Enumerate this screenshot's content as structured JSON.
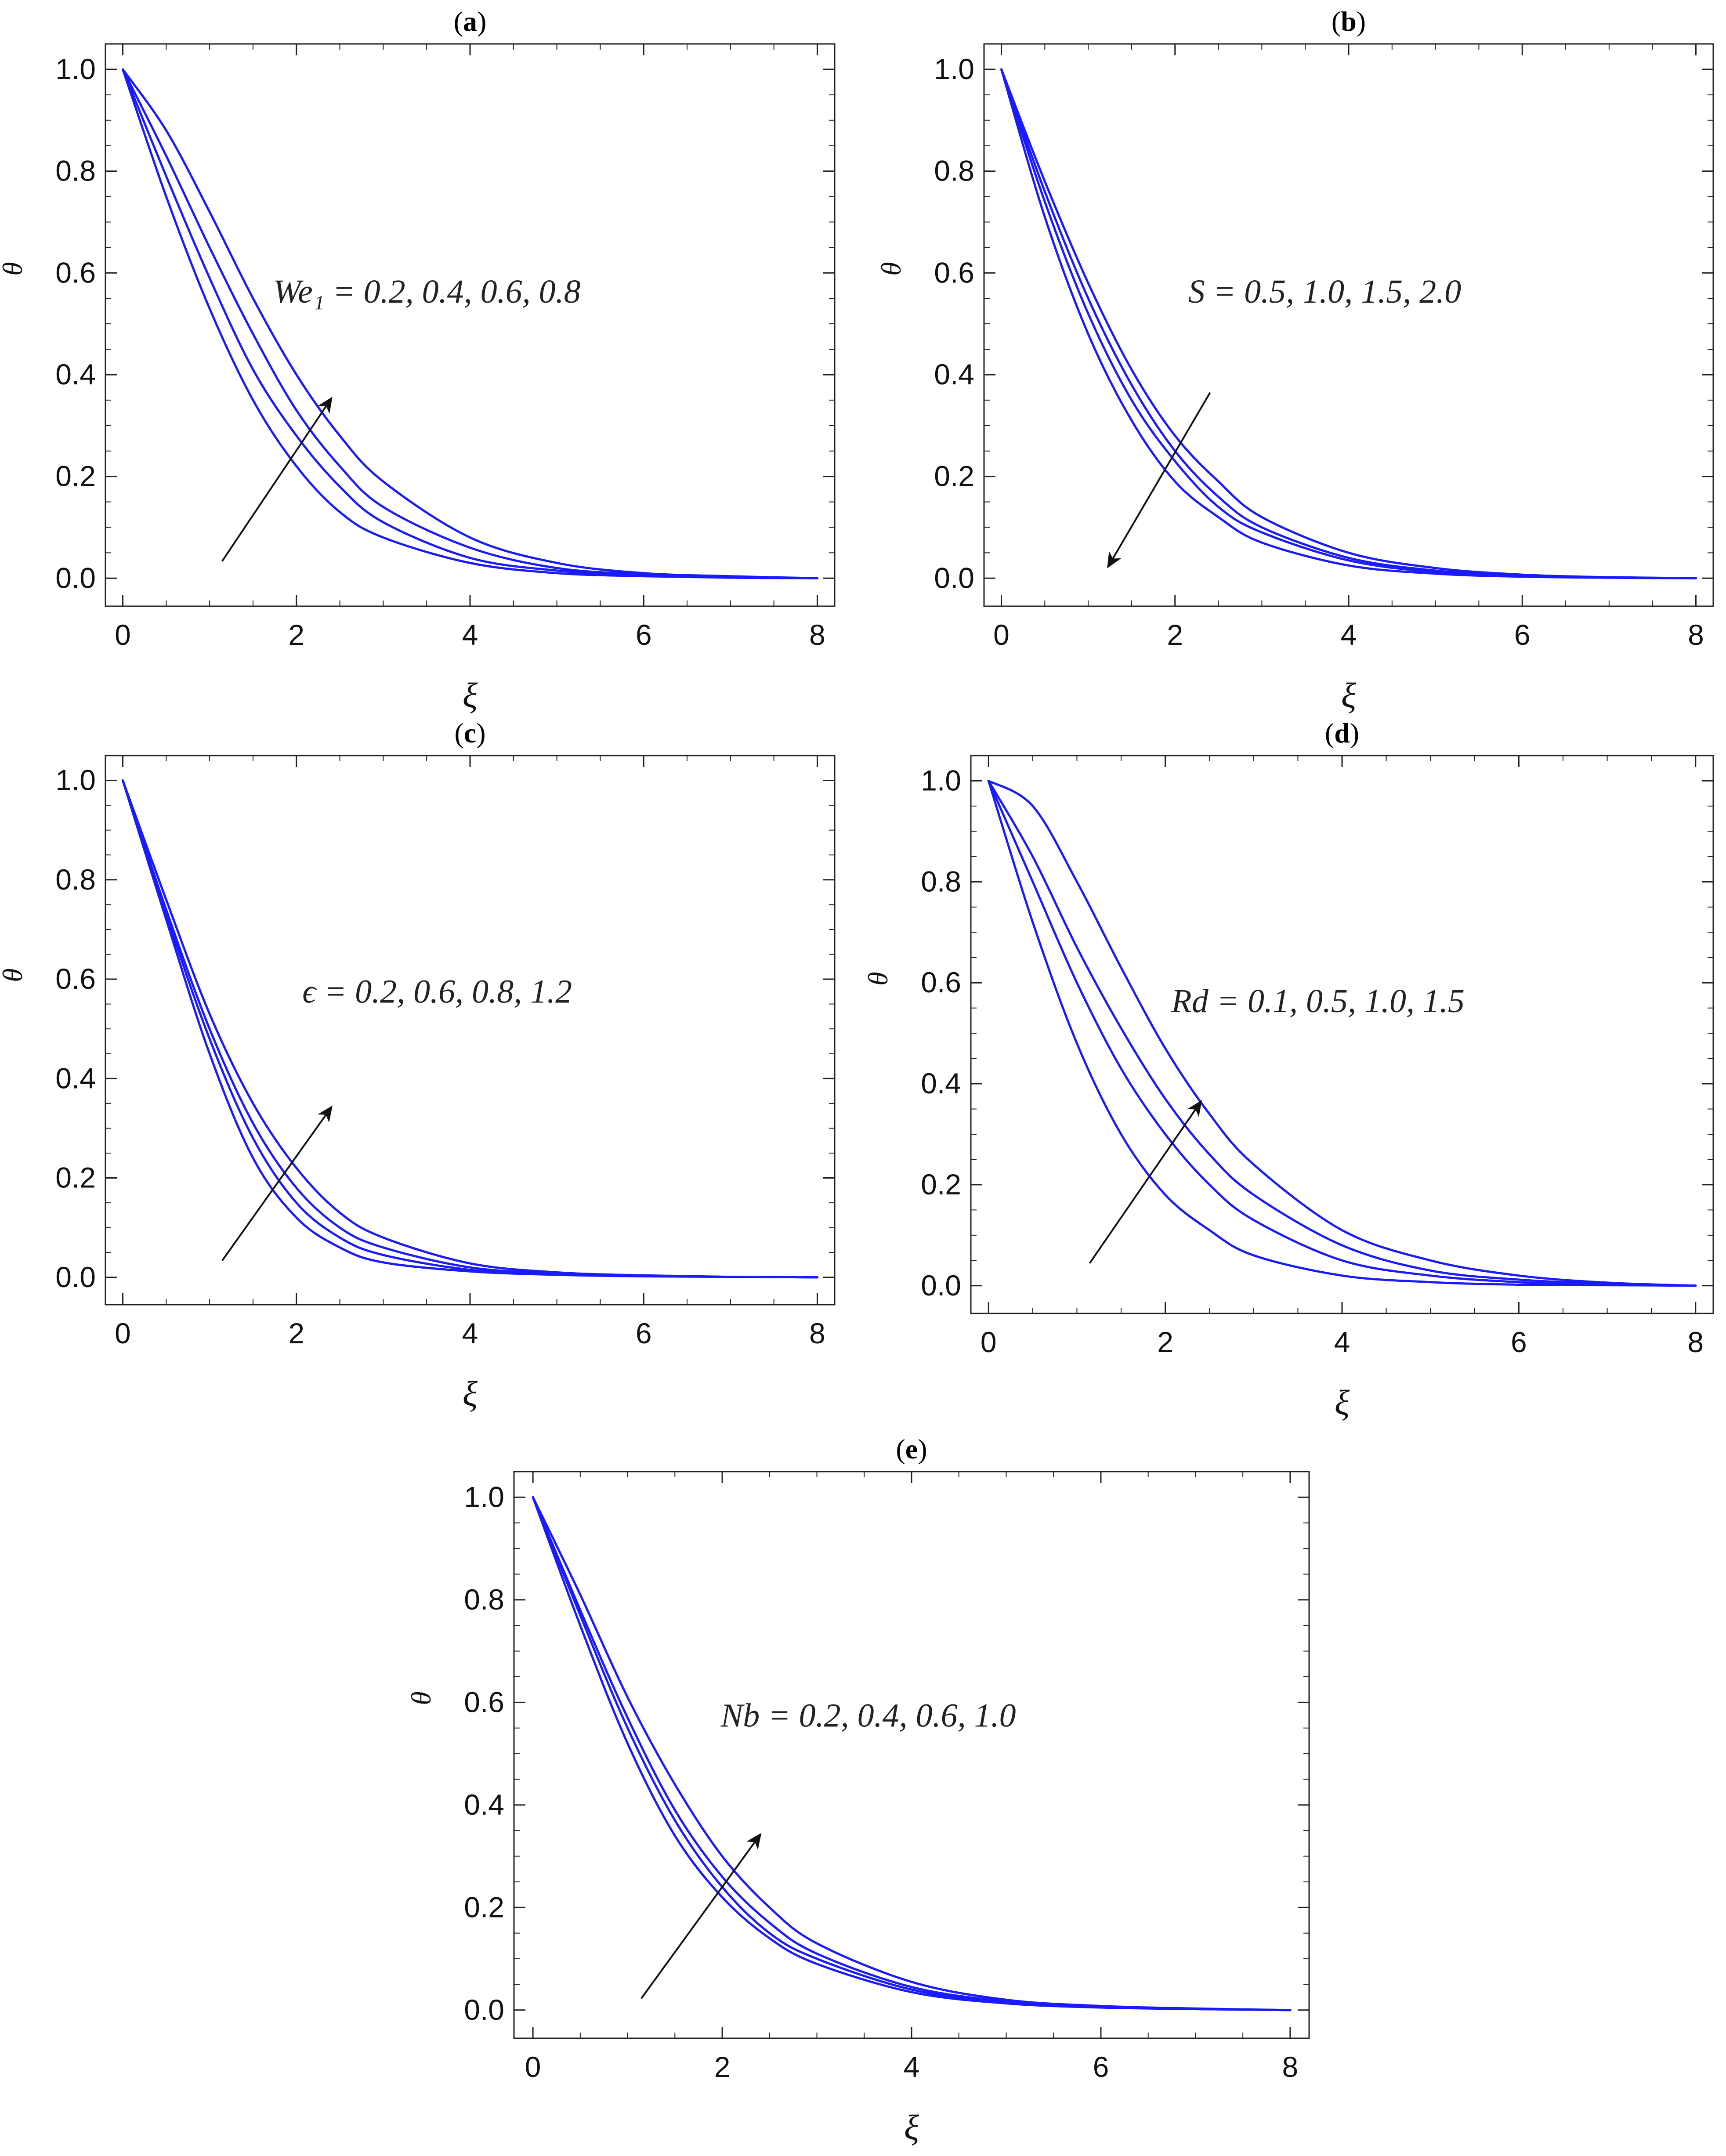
{
  "chart_data": [
    {
      "panel": "a",
      "type": "line",
      "xlabel": "ξ",
      "ylabel": "θ",
      "xlim": [
        0,
        8
      ],
      "ylim": [
        0,
        1
      ],
      "xticks": [
        0,
        2,
        4,
        6,
        8
      ],
      "yticks": [
        0.0,
        0.2,
        0.4,
        0.6,
        0.8,
        1.0
      ],
      "x": [
        0,
        0.5,
        1,
        1.5,
        2,
        2.5,
        3,
        4,
        5,
        6,
        7,
        8
      ],
      "series": [
        {
          "values": [
            1.0,
            0.75,
            0.53,
            0.35,
            0.22,
            0.13,
            0.08,
            0.03,
            0.01,
            0.004,
            0.001,
            0.0
          ]
        },
        {
          "values": [
            1.0,
            0.79,
            0.59,
            0.41,
            0.28,
            0.18,
            0.11,
            0.04,
            0.015,
            0.005,
            0.002,
            0.0
          ]
        },
        {
          "values": [
            1.0,
            0.83,
            0.65,
            0.48,
            0.33,
            0.22,
            0.14,
            0.06,
            0.02,
            0.008,
            0.003,
            0.0
          ]
        },
        {
          "values": [
            1.0,
            0.88,
            0.72,
            0.55,
            0.4,
            0.28,
            0.19,
            0.08,
            0.03,
            0.01,
            0.004,
            0.0
          ]
        }
      ],
      "annotation": {
        "text": "We₁ = 0.2, 0.4, 0.6, 0.8",
        "arrow": "up"
      }
    },
    {
      "panel": "b",
      "type": "line",
      "xlabel": "ξ",
      "ylabel": "θ",
      "xlim": [
        0,
        8
      ],
      "ylim": [
        0,
        1
      ],
      "xticks": [
        0,
        2,
        4,
        6,
        8
      ],
      "yticks": [
        0.0,
        0.2,
        0.4,
        0.6,
        0.8,
        1.0
      ],
      "x": [
        0,
        0.5,
        1,
        1.5,
        2,
        2.5,
        3,
        4,
        5,
        6,
        7,
        8
      ],
      "series": [
        {
          "values": [
            1.0,
            0.78,
            0.58,
            0.41,
            0.28,
            0.19,
            0.12,
            0.05,
            0.02,
            0.007,
            0.002,
            0.0
          ]
        },
        {
          "values": [
            1.0,
            0.76,
            0.55,
            0.38,
            0.25,
            0.16,
            0.1,
            0.04,
            0.015,
            0.005,
            0.002,
            0.0
          ]
        },
        {
          "values": [
            1.0,
            0.74,
            0.52,
            0.35,
            0.23,
            0.14,
            0.09,
            0.035,
            0.012,
            0.004,
            0.001,
            0.0
          ]
        },
        {
          "values": [
            1.0,
            0.71,
            0.48,
            0.31,
            0.19,
            0.12,
            0.07,
            0.025,
            0.009,
            0.003,
            0.001,
            0.0
          ]
        }
      ],
      "annotation": {
        "text": "S = 0.5, 1.0, 1.5, 2.0",
        "arrow": "down"
      }
    },
    {
      "panel": "c",
      "type": "line",
      "xlabel": "ξ",
      "ylabel": "θ",
      "xlim": [
        0,
        8
      ],
      "ylim": [
        0,
        1
      ],
      "xticks": [
        0,
        2,
        4,
        6,
        8
      ],
      "yticks": [
        0.0,
        0.2,
        0.4,
        0.6,
        0.8,
        1.0
      ],
      "x": [
        0,
        0.5,
        1,
        1.5,
        2,
        2.5,
        3,
        4,
        5,
        6,
        7,
        8
      ],
      "series": [
        {
          "values": [
            1.0,
            0.72,
            0.45,
            0.24,
            0.12,
            0.06,
            0.03,
            0.012,
            0.005,
            0.002,
            0.001,
            0.0
          ]
        },
        {
          "values": [
            1.0,
            0.73,
            0.48,
            0.28,
            0.15,
            0.08,
            0.045,
            0.015,
            0.006,
            0.003,
            0.001,
            0.0
          ]
        },
        {
          "values": [
            1.0,
            0.74,
            0.5,
            0.31,
            0.18,
            0.1,
            0.06,
            0.02,
            0.008,
            0.003,
            0.001,
            0.0
          ]
        },
        {
          "values": [
            1.0,
            0.76,
            0.53,
            0.35,
            0.22,
            0.13,
            0.08,
            0.028,
            0.01,
            0.004,
            0.001,
            0.0
          ]
        }
      ],
      "annotation": {
        "text": "ϵ = 0.2, 0.6, 0.8, 1.2",
        "arrow": "up"
      }
    },
    {
      "panel": "d",
      "type": "line",
      "xlabel": "ξ",
      "ylabel": "θ",
      "xlim": [
        0,
        8
      ],
      "ylim": [
        0,
        1
      ],
      "xticks": [
        0,
        2,
        4,
        6,
        8
      ],
      "yticks": [
        0.0,
        0.2,
        0.4,
        0.6,
        0.8,
        1.0
      ],
      "x": [
        0,
        0.5,
        1,
        1.5,
        2,
        2.5,
        3,
        4,
        5,
        6,
        7,
        8
      ],
      "series": [
        {
          "values": [
            1.0,
            0.72,
            0.48,
            0.3,
            0.18,
            0.11,
            0.06,
            0.02,
            0.007,
            0.002,
            0.001,
            0.0
          ]
        },
        {
          "values": [
            1.0,
            0.8,
            0.6,
            0.43,
            0.3,
            0.2,
            0.13,
            0.05,
            0.02,
            0.007,
            0.002,
            0.0
          ]
        },
        {
          "values": [
            1.0,
            0.85,
            0.67,
            0.51,
            0.37,
            0.26,
            0.18,
            0.08,
            0.03,
            0.012,
            0.004,
            0.0
          ]
        },
        {
          "values": [
            1.0,
            0.95,
            0.8,
            0.63,
            0.47,
            0.34,
            0.24,
            0.11,
            0.05,
            0.02,
            0.006,
            0.0
          ]
        }
      ],
      "annotation": {
        "text": "Rd = 0.1, 0.5, 1.0, 1.5",
        "arrow": "up"
      }
    },
    {
      "panel": "e",
      "type": "line",
      "xlabel": "ξ",
      "ylabel": "θ",
      "xlim": [
        0,
        8
      ],
      "ylim": [
        0,
        1
      ],
      "xticks": [
        0,
        2,
        4,
        6,
        8
      ],
      "yticks": [
        0.0,
        0.2,
        0.4,
        0.6,
        0.8,
        1.0
      ],
      "x": [
        0,
        0.5,
        1,
        1.5,
        2,
        2.5,
        3,
        4,
        5,
        6,
        7,
        8
      ],
      "series": [
        {
          "values": [
            1.0,
            0.75,
            0.52,
            0.34,
            0.22,
            0.14,
            0.09,
            0.035,
            0.013,
            0.005,
            0.002,
            0.0
          ]
        },
        {
          "values": [
            1.0,
            0.77,
            0.55,
            0.37,
            0.24,
            0.15,
            0.1,
            0.04,
            0.015,
            0.006,
            0.002,
            0.0
          ]
        },
        {
          "values": [
            1.0,
            0.78,
            0.57,
            0.39,
            0.26,
            0.17,
            0.11,
            0.045,
            0.017,
            0.006,
            0.002,
            0.0
          ]
        },
        {
          "values": [
            1.0,
            0.81,
            0.61,
            0.44,
            0.3,
            0.2,
            0.13,
            0.055,
            0.02,
            0.008,
            0.003,
            0.0
          ]
        }
      ],
      "annotation": {
        "text": "Nb = 0.2, 0.4, 0.6, 1.0",
        "arrow": "up"
      }
    }
  ],
  "style": {
    "line_color": "#1a1aff",
    "axis_color": "#222222",
    "arrow_color": "#111111"
  }
}
